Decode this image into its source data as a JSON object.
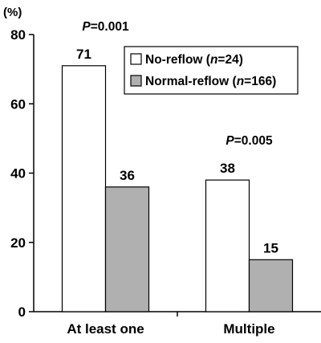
{
  "chart_data": {
    "type": "bar",
    "unit_label": "(%)",
    "categories": [
      "At least one",
      "Multiple"
    ],
    "series": [
      {
        "name_prefix": "No-reflow (",
        "name_italic": "n",
        "name_suffix": "=24)",
        "color": "#ffffff",
        "values": [
          71,
          38
        ]
      },
      {
        "name_prefix": "Normal-reflow (",
        "name_italic": "n",
        "name_suffix": "=166)",
        "color": "#b0b0b0",
        "values": [
          36,
          15
        ]
      }
    ],
    "data_labels": [
      [
        "71",
        "38"
      ],
      [
        "36",
        "15"
      ]
    ],
    "ylim": [
      0,
      80
    ],
    "yticks": [
      0,
      20,
      40,
      60,
      80
    ],
    "ytick_labels": [
      "0",
      "20",
      "40",
      "60",
      "80"
    ],
    "legend_position": "top-right",
    "grid": false,
    "annotations": [
      {
        "category": 0,
        "italic": "P",
        "text": "=0.001"
      },
      {
        "category": 1,
        "italic": "P",
        "text": "=0.005"
      }
    ]
  }
}
